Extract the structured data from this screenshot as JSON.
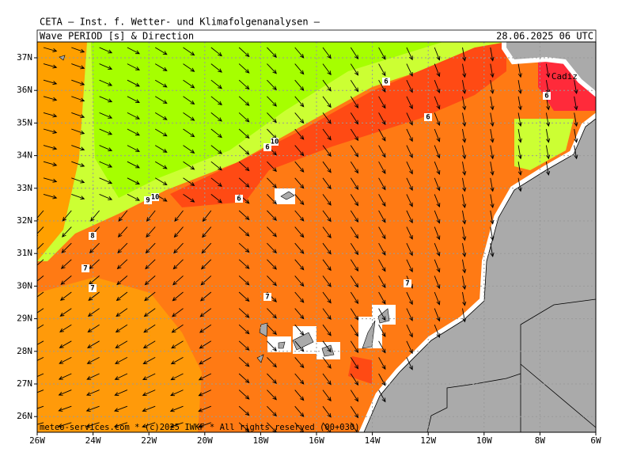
{
  "header": {
    "institute": "CETA — Inst. f. Wetter- und Klimafolgenanalysen —",
    "title": "Wave PERIOD [s] & Direction",
    "time": "28.06.2025 06 UTC"
  },
  "map": {
    "lat_labels": [
      "37N",
      "36N",
      "35N",
      "34N",
      "33N",
      "32N",
      "31N",
      "30N",
      "29N",
      "28N",
      "27N",
      "26N"
    ],
    "lon_labels": [
      "26W",
      "24W",
      "22W",
      "20W",
      "18W",
      "16W",
      "14W",
      "12W",
      "10W",
      "8W",
      "6W"
    ],
    "place_label": "Cadiz",
    "contour_labels": [
      "6",
      "6",
      "6",
      "10",
      "6",
      "10",
      "9",
      "6",
      "8",
      "7",
      "7",
      "7",
      "7"
    ],
    "footer": "meteo-services.com * (c)2025 IWKF * All rights reserved (00+030)"
  }
}
